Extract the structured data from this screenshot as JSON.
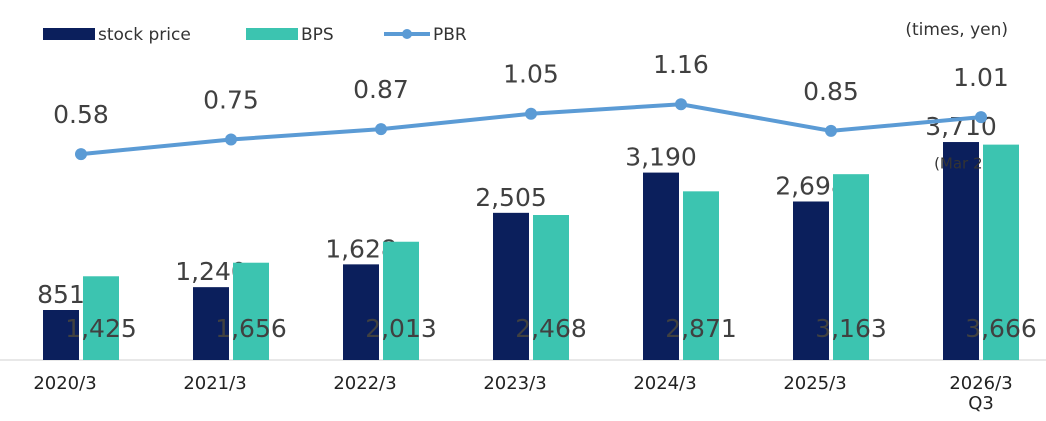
{
  "chart_data": {
    "type": "bar_line",
    "unit_note": "(times, yen)",
    "annotation": "(Mar 23)",
    "categories": [
      "2020/3",
      "2021/3",
      "2022/3",
      "2023/3",
      "2024/3",
      "2025/3",
      "2026/3\nQ3"
    ],
    "series": [
      {
        "name": "stock price",
        "color": "#0b1f5c",
        "type": "bar",
        "values": [
          851,
          1240,
          1628,
          2505,
          3190,
          2698,
          3710
        ],
        "value_labels": [
          "851",
          "1,240",
          "1,628",
          "2,505",
          "3,190",
          "2,698",
          "3,710"
        ]
      },
      {
        "name": "BPS",
        "color": "#3cc4b0",
        "type": "bar",
        "values": [
          1425,
          1656,
          2013,
          2468,
          2871,
          3163,
          3666
        ],
        "value_labels": [
          "1,425",
          "1,656",
          "2,013",
          "2,468",
          "2,871",
          "3,163",
          "3,666"
        ]
      },
      {
        "name": "PBR",
        "color": "#5b9bd5",
        "type": "line",
        "axis": "y2",
        "values": [
          0.58,
          0.75,
          0.87,
          1.05,
          1.16,
          0.85,
          1.01
        ]
      }
    ],
    "ylim": [
      0,
      4000
    ],
    "y2lim": [
      0,
      2
    ]
  }
}
